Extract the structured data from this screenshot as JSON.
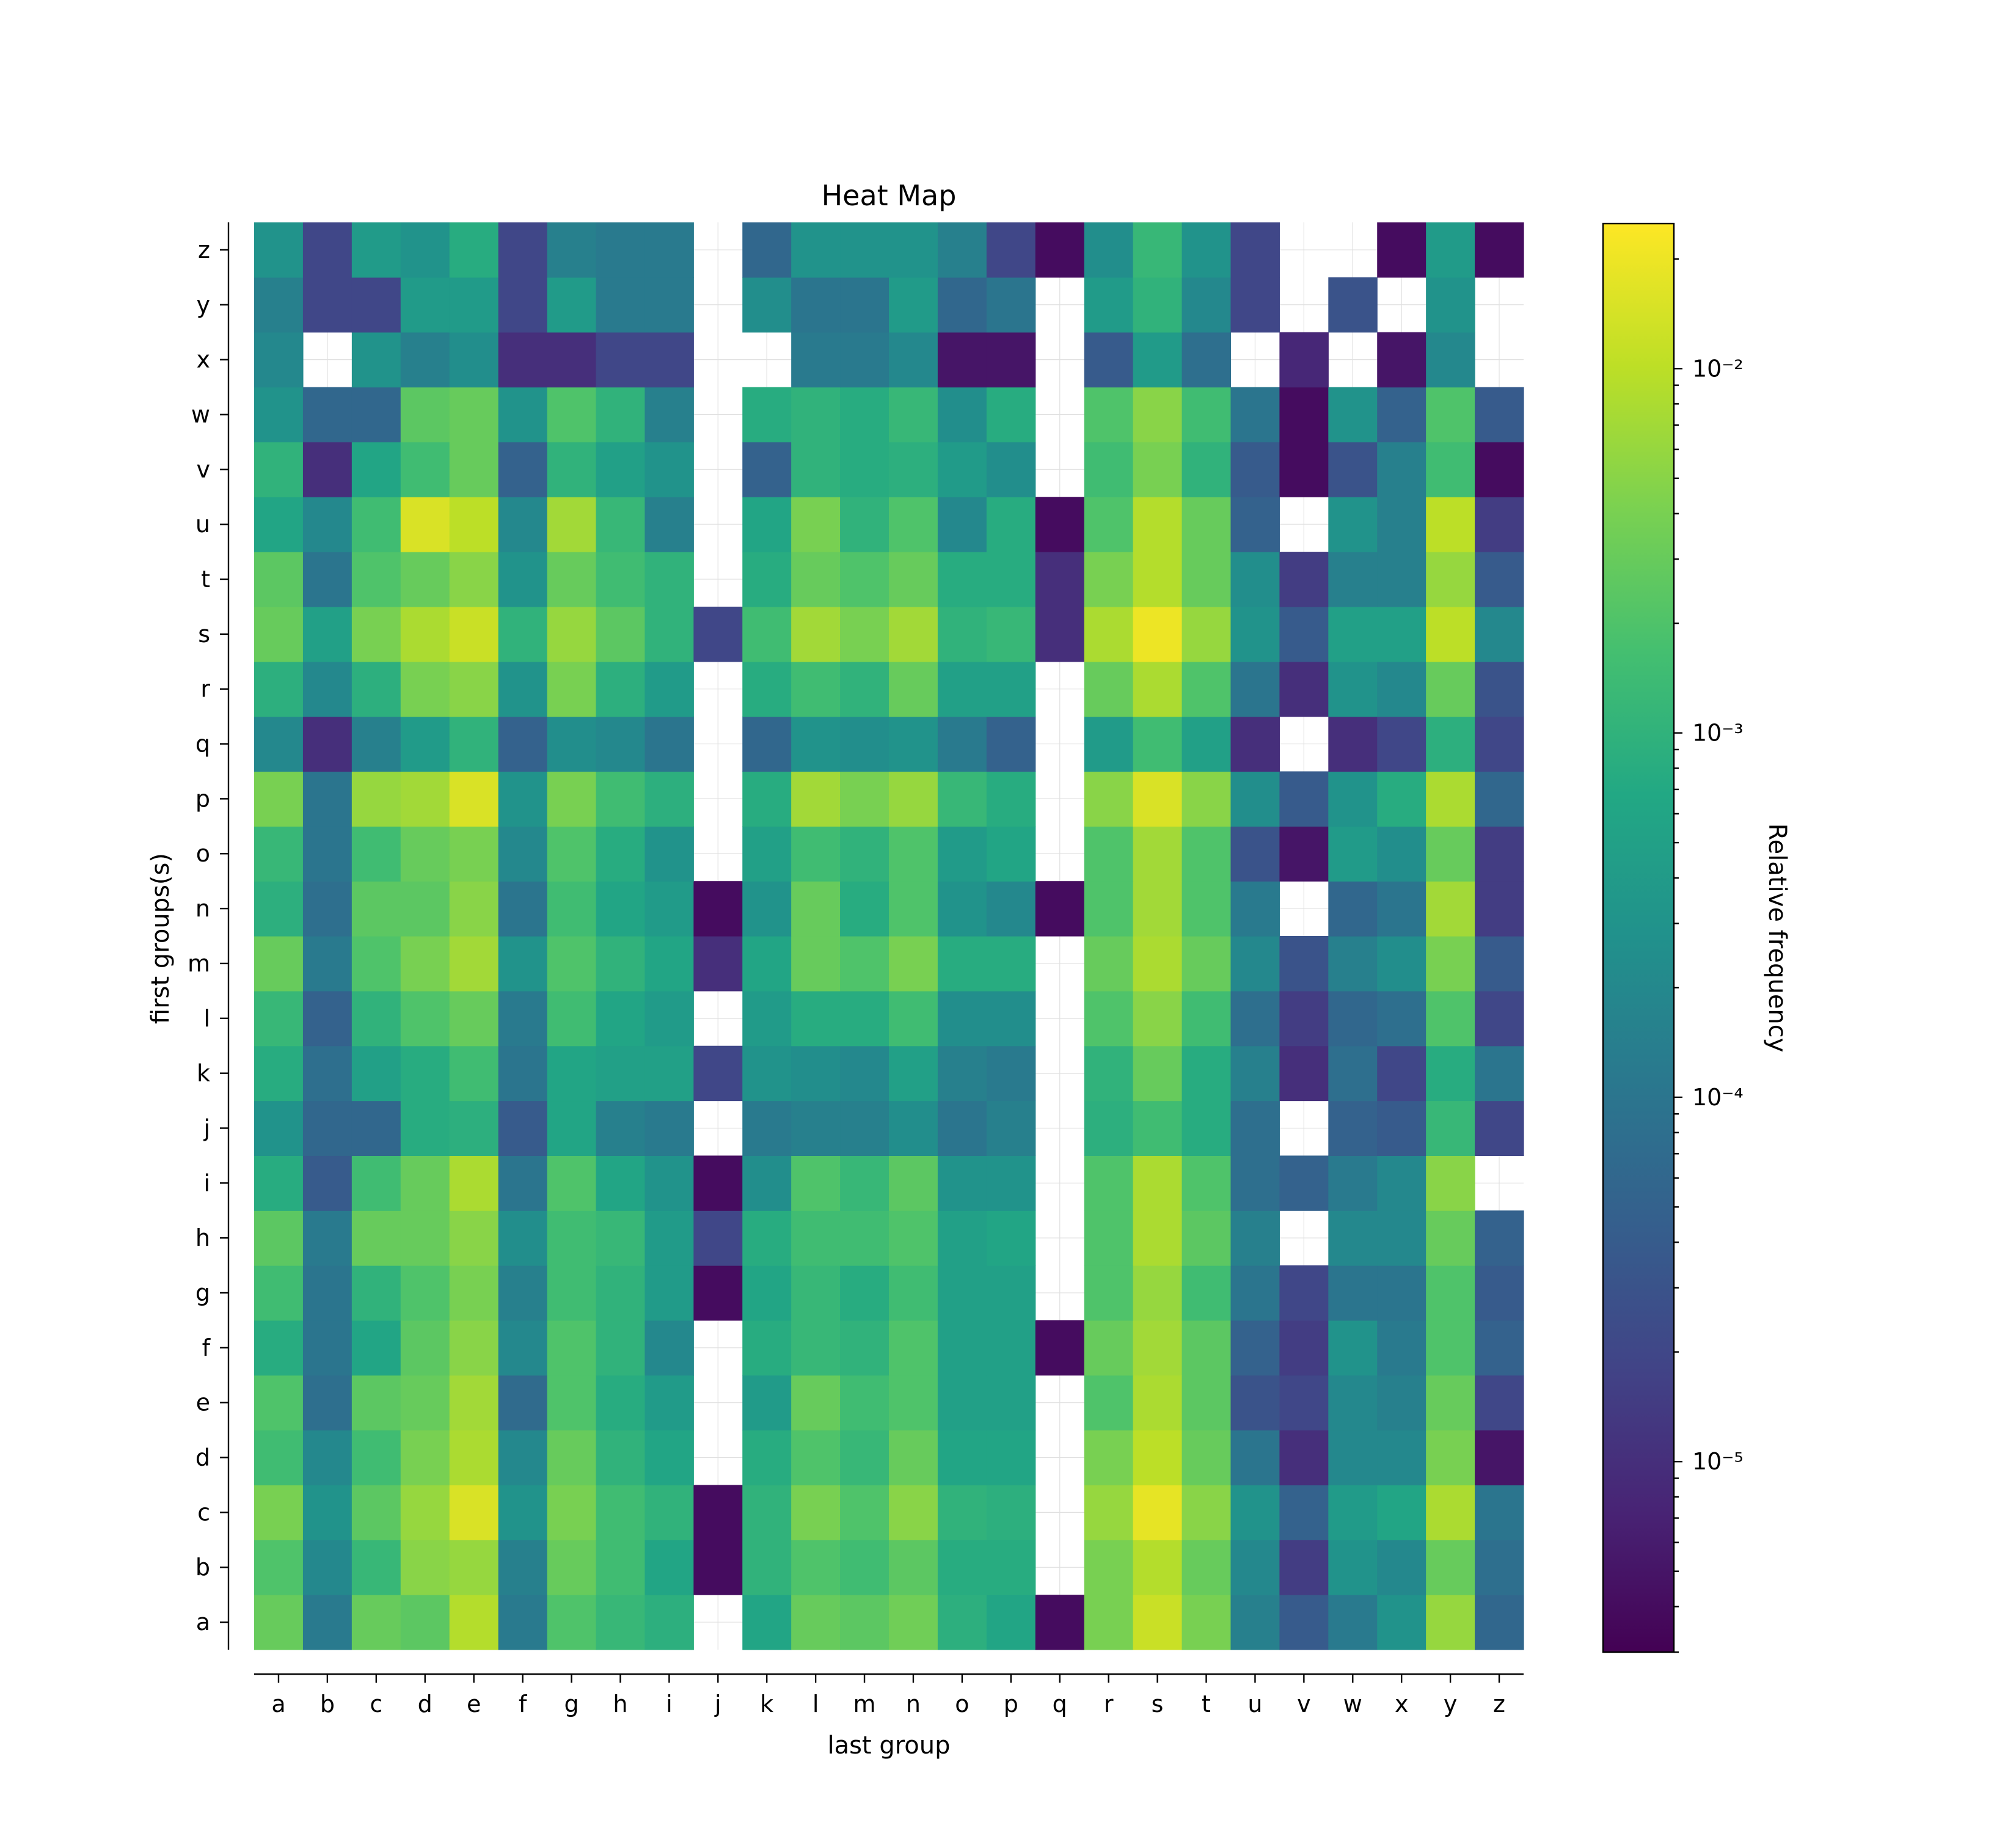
{
  "chart_data": {
    "type": "heatmap",
    "title": "Heat Map",
    "xlabel": "last group",
    "ylabel": "first groups(s)",
    "colorbar_label": "Relative frequency",
    "colorbar_scale": "log",
    "colormap": "viridis",
    "color_range": [
      3e-06,
      0.025
    ],
    "colorbar_ticks": [
      {
        "value": 1e-05,
        "label": "10⁻⁵"
      },
      {
        "value": 0.0001,
        "label": "10⁻⁴"
      },
      {
        "value": 0.001,
        "label": "10⁻³"
      },
      {
        "value": 0.01,
        "label": "10⁻²"
      }
    ],
    "x_categories": [
      "a",
      "b",
      "c",
      "d",
      "e",
      "f",
      "g",
      "h",
      "i",
      "j",
      "k",
      "l",
      "m",
      "n",
      "o",
      "p",
      "q",
      "r",
      "s",
      "t",
      "u",
      "v",
      "w",
      "x",
      "y",
      "z"
    ],
    "y_categories": [
      "a",
      "b",
      "c",
      "d",
      "e",
      "f",
      "g",
      "h",
      "i",
      "j",
      "k",
      "l",
      "m",
      "n",
      "o",
      "p",
      "q",
      "r",
      "s",
      "t",
      "u",
      "v",
      "w",
      "x",
      "y",
      "z"
    ],
    "grid": true,
    "note_values": "values[row][col]; rows follow y_categories (a..z, bottom to top), columns follow x_categories; null = no data (white)",
    "values": [
      [
        0.003,
        0.00012,
        0.003,
        0.0025,
        0.009,
        0.00012,
        0.002,
        0.0012,
        0.0009,
        null,
        0.0006,
        0.003,
        0.0025,
        0.0035,
        0.0009,
        0.0006,
        4e-06,
        0.004,
        0.012,
        0.004,
        0.00015,
        4e-05,
        0.00012,
        0.0003,
        0.006,
        6e-05
      ],
      [
        0.002,
        0.0002,
        0.0012,
        0.005,
        0.006,
        0.00015,
        0.003,
        0.0015,
        0.0006,
        4e-06,
        0.001,
        0.002,
        0.0015,
        0.0025,
        0.0008,
        0.0008,
        null,
        0.004,
        0.009,
        0.003,
        0.0002,
        1.5e-05,
        0.0003,
        0.0002,
        0.003,
        8e-05
      ],
      [
        0.004,
        0.0003,
        0.0025,
        0.006,
        0.015,
        0.0003,
        0.004,
        0.0015,
        0.001,
        4e-06,
        0.001,
        0.004,
        0.002,
        0.005,
        0.001,
        0.0009,
        null,
        0.006,
        0.018,
        0.005,
        0.0003,
        5e-05,
        0.0004,
        0.0006,
        0.008,
        0.0001
      ],
      [
        0.0015,
        0.0002,
        0.0015,
        0.004,
        0.008,
        0.0002,
        0.003,
        0.001,
        0.0006,
        null,
        0.0008,
        0.002,
        0.0012,
        0.003,
        0.0006,
        0.0006,
        null,
        0.004,
        0.01,
        0.003,
        0.0001,
        1e-05,
        0.0002,
        0.0002,
        0.004,
        5e-06
      ],
      [
        0.002,
        8e-05,
        0.0025,
        0.003,
        0.007,
        7e-05,
        0.002,
        0.0008,
        0.0004,
        null,
        0.0004,
        0.003,
        0.0015,
        0.002,
        0.0005,
        0.0005,
        null,
        0.002,
        0.008,
        0.0025,
        3e-05,
        2e-05,
        0.0002,
        0.00015,
        0.003,
        2e-05
      ],
      [
        0.0008,
        0.0001,
        0.0006,
        0.0025,
        0.005,
        0.0002,
        0.002,
        0.001,
        0.0002,
        null,
        0.0008,
        0.0012,
        0.001,
        0.002,
        0.0005,
        0.0005,
        4e-06,
        0.003,
        0.007,
        0.0025,
        5e-05,
        1.5e-05,
        0.0003,
        0.00012,
        0.002,
        5e-05
      ],
      [
        0.0015,
        0.0001,
        0.001,
        0.002,
        0.004,
        0.00015,
        0.0015,
        0.001,
        0.0004,
        4e-06,
        0.0006,
        0.0012,
        0.0008,
        0.0015,
        0.0005,
        0.0005,
        null,
        0.002,
        0.006,
        0.0015,
        0.0001,
        2e-05,
        0.0001,
        0.0001,
        0.002,
        4e-05
      ],
      [
        0.0025,
        0.00012,
        0.003,
        0.003,
        0.005,
        0.00025,
        0.0015,
        0.0012,
        0.0004,
        2e-05,
        0.0008,
        0.0015,
        0.0015,
        0.002,
        0.0005,
        0.0006,
        null,
        0.002,
        0.008,
        0.0025,
        0.00015,
        null,
        0.0002,
        0.0002,
        0.003,
        5e-05
      ],
      [
        0.0008,
        4e-05,
        0.0015,
        0.003,
        0.008,
        0.0001,
        0.002,
        0.0006,
        0.0003,
        4e-06,
        0.00025,
        0.002,
        0.0012,
        0.0025,
        0.0003,
        0.0003,
        null,
        0.002,
        0.008,
        0.002,
        8e-05,
        5e-05,
        0.00012,
        0.0002,
        0.005,
        null
      ],
      [
        0.0003,
        6e-05,
        6e-05,
        0.0008,
        0.0009,
        4e-05,
        0.0006,
        0.00015,
        0.00012,
        null,
        0.00012,
        0.00015,
        0.00015,
        0.00025,
        0.0001,
        0.00015,
        null,
        0.0009,
        0.0015,
        0.0008,
        8e-05,
        null,
        5e-05,
        4e-05,
        0.0012,
        2e-05
      ],
      [
        0.0008,
        8e-05,
        0.0005,
        0.0008,
        0.0015,
        0.0001,
        0.0006,
        0.0005,
        0.0005,
        2e-05,
        0.0003,
        0.00025,
        0.0002,
        0.0005,
        0.00015,
        0.00012,
        null,
        0.001,
        0.003,
        0.0008,
        0.00015,
        1e-05,
        8e-05,
        2e-05,
        0.0008,
        0.0001
      ],
      [
        0.0012,
        5e-05,
        0.001,
        0.002,
        0.003,
        0.00012,
        0.0015,
        0.0006,
        0.0004,
        null,
        0.0004,
        0.0008,
        0.0008,
        0.0015,
        0.00025,
        0.00025,
        null,
        0.002,
        0.005,
        0.0015,
        8e-05,
        1.5e-05,
        6e-05,
        8e-05,
        0.002,
        2e-05
      ],
      [
        0.003,
        0.00012,
        0.002,
        0.004,
        0.007,
        0.0003,
        0.002,
        0.001,
        0.0006,
        1e-05,
        0.0006,
        0.003,
        0.002,
        0.004,
        0.0008,
        0.0008,
        null,
        0.003,
        0.008,
        0.003,
        0.0002,
        3e-05,
        0.00015,
        0.00025,
        0.004,
        4e-05
      ],
      [
        0.0009,
        8e-05,
        0.0025,
        0.0025,
        0.005,
        0.0001,
        0.0015,
        0.0006,
        0.0004,
        4e-06,
        0.0003,
        0.003,
        0.0008,
        0.002,
        0.0003,
        0.0002,
        4e-06,
        0.002,
        0.007,
        0.002,
        0.00012,
        null,
        6e-05,
        0.0001,
        0.007,
        1.5e-05
      ],
      [
        0.0012,
        0.0001,
        0.0015,
        0.003,
        0.004,
        0.0002,
        0.002,
        0.0008,
        0.0003,
        null,
        0.0005,
        0.0015,
        0.001,
        0.002,
        0.0004,
        0.0006,
        null,
        0.002,
        0.007,
        0.002,
        3e-05,
        5e-06,
        0.0004,
        0.00025,
        0.003,
        1.5e-05
      ],
      [
        0.004,
        0.0001,
        0.006,
        0.007,
        0.015,
        0.0003,
        0.004,
        0.0015,
        0.0009,
        null,
        0.0008,
        0.007,
        0.004,
        0.006,
        0.0012,
        0.0008,
        null,
        0.005,
        0.015,
        0.005,
        0.00025,
        4e-05,
        0.0003,
        0.0008,
        0.008,
        6e-05
      ],
      [
        0.0002,
        1e-05,
        0.00015,
        0.0004,
        0.001,
        5e-05,
        0.00025,
        0.0002,
        0.0001,
        null,
        6e-05,
        0.0003,
        0.00025,
        0.0003,
        0.00012,
        5e-05,
        null,
        0.0004,
        0.0015,
        0.0005,
        1e-05,
        null,
        1e-05,
        2e-05,
        0.0009,
        2e-05
      ],
      [
        0.0009,
        0.0002,
        0.0009,
        0.004,
        0.005,
        0.0003,
        0.004,
        0.0009,
        0.0004,
        null,
        0.0008,
        0.0015,
        0.001,
        0.003,
        0.0005,
        0.0005,
        null,
        0.003,
        0.008,
        0.002,
        0.0001,
        1e-05,
        0.0003,
        0.0002,
        0.003,
        3e-05
      ],
      [
        0.003,
        0.0005,
        0.004,
        0.008,
        0.012,
        0.001,
        0.006,
        0.0025,
        0.001,
        2e-05,
        0.0015,
        0.007,
        0.004,
        0.007,
        0.001,
        0.0012,
        1e-05,
        0.008,
        0.02,
        0.006,
        0.0003,
        4e-05,
        0.0005,
        0.0005,
        0.01,
        0.0002
      ],
      [
        0.0025,
        0.0001,
        0.002,
        0.003,
        0.005,
        0.0003,
        0.003,
        0.0015,
        0.001,
        null,
        0.0008,
        0.003,
        0.002,
        0.003,
        0.0008,
        0.0008,
        1e-05,
        0.004,
        0.009,
        0.003,
        0.00025,
        1.5e-05,
        0.00015,
        0.00015,
        0.006,
        4e-05
      ],
      [
        0.0006,
        0.0002,
        0.0015,
        0.015,
        0.01,
        0.0002,
        0.007,
        0.0012,
        0.00015,
        null,
        0.0006,
        0.004,
        0.001,
        0.002,
        0.0002,
        0.0008,
        4e-06,
        0.002,
        0.009,
        0.003,
        5e-05,
        null,
        0.0003,
        0.00015,
        0.01,
        1.5e-05
      ],
      [
        0.001,
        1e-05,
        0.0006,
        0.0015,
        0.003,
        5e-05,
        0.001,
        0.0005,
        0.0003,
        null,
        5e-05,
        0.001,
        0.0008,
        0.0009,
        0.0004,
        0.00025,
        null,
        0.0015,
        0.004,
        0.001,
        4e-05,
        4e-06,
        3e-05,
        0.00015,
        0.0015,
        4e-06
      ],
      [
        0.0003,
        6e-05,
        6e-05,
        0.0025,
        0.003,
        0.0003,
        0.002,
        0.001,
        0.00015,
        null,
        0.0008,
        0.001,
        0.0008,
        0.0012,
        0.00025,
        0.0008,
        null,
        0.002,
        0.005,
        0.0015,
        0.0001,
        4e-06,
        0.0003,
        5e-05,
        0.002,
        4e-05
      ],
      [
        0.0002,
        null,
        0.0003,
        0.00015,
        0.00025,
        1e-05,
        1e-05,
        2e-05,
        2e-05,
        null,
        null,
        0.00012,
        0.00012,
        0.0002,
        5e-06,
        5e-06,
        null,
        4e-05,
        0.0004,
        8e-05,
        null,
        8e-06,
        null,
        5e-06,
        0.0002,
        null
      ],
      [
        0.00015,
        2e-05,
        2e-05,
        0.0004,
        0.0004,
        2e-05,
        0.0004,
        0.00012,
        0.00012,
        null,
        0.00025,
        0.0001,
        0.0001,
        0.0004,
        6e-05,
        0.0001,
        null,
        0.0004,
        0.001,
        0.0002,
        2e-05,
        null,
        3e-05,
        null,
        0.0003,
        null
      ],
      [
        0.0003,
        2e-05,
        0.0004,
        0.0003,
        0.0008,
        2e-05,
        0.00015,
        0.00012,
        0.00012,
        null,
        6e-05,
        0.0003,
        0.0003,
        0.0003,
        0.00015,
        2e-05,
        4e-06,
        0.00025,
        0.0012,
        0.0003,
        2e-05,
        null,
        null,
        4e-06,
        0.0004,
        4e-06
      ]
    ]
  }
}
